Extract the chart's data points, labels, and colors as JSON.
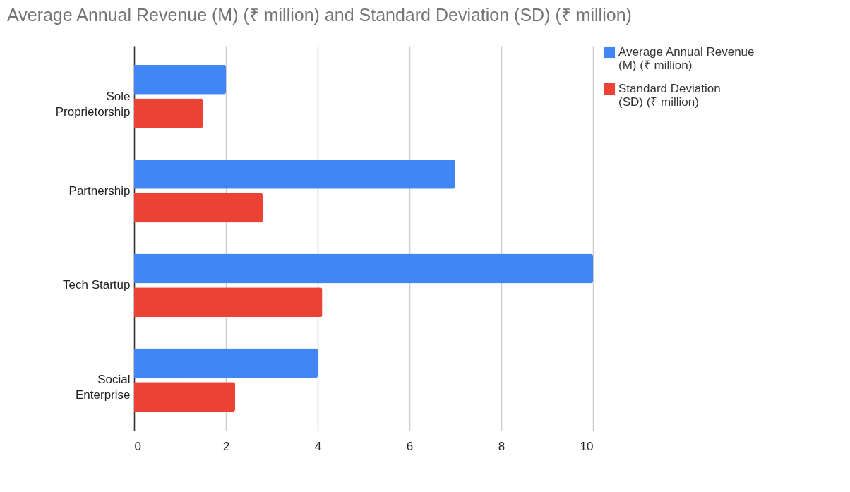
{
  "chart_data": {
    "type": "bar",
    "orientation": "horizontal",
    "title": "Average Annual Revenue (M) (₹ million) and Standard Deviation (SD) (₹ million)",
    "categories": [
      "Sole Proprietorship",
      "Partnership",
      "Tech Startup",
      "Social Enterprise"
    ],
    "series": [
      {
        "name": "Average Annual Revenue (M) (₹ million)",
        "color": "#4285f4",
        "values": [
          2,
          7,
          10,
          4
        ]
      },
      {
        "name": "Standard Deviation (SD) (₹ million)",
        "color": "#ea4335",
        "values": [
          1.5,
          2.8,
          4.1,
          2.2
        ]
      }
    ],
    "xlim": [
      0,
      10
    ],
    "xticks": [
      0,
      2,
      4,
      6,
      8,
      10
    ],
    "grid": "x",
    "legend": "top right"
  }
}
